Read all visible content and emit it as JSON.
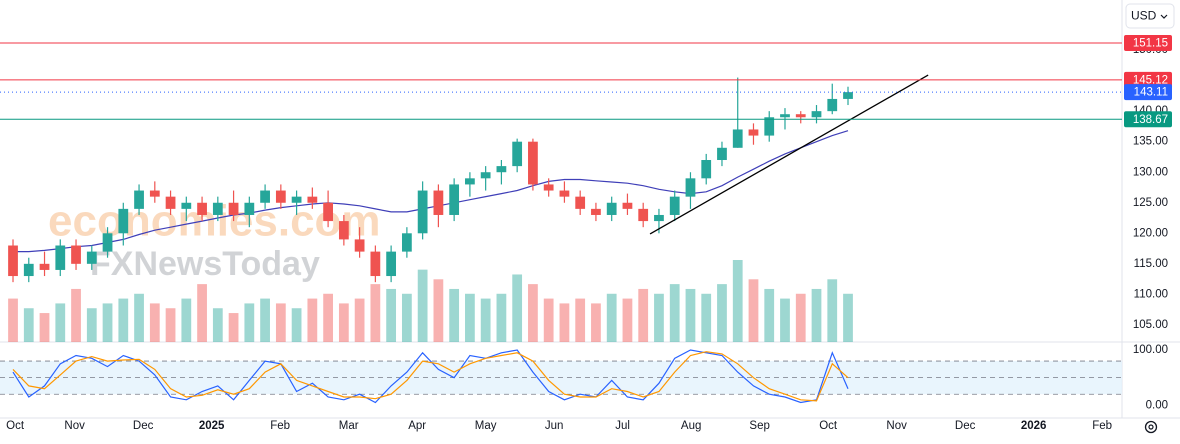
{
  "currency": "USD",
  "watermark": [
    "economies.com",
    "FXNewsToday"
  ],
  "chart_data": {
    "type": "candlestick",
    "xlim": [
      -0.09,
      16.29
    ],
    "xticks": [
      {
        "value": 0,
        "label": "Oct"
      },
      {
        "value": 1,
        "label": "Nov"
      },
      {
        "value": 2,
        "label": "Dec"
      },
      {
        "value": 3,
        "label": "2025"
      },
      {
        "value": 4,
        "label": "Feb"
      },
      {
        "value": 5,
        "label": "Mar"
      },
      {
        "value": 6,
        "label": "Apr"
      },
      {
        "value": 7,
        "label": "May"
      },
      {
        "value": 8,
        "label": "Jun"
      },
      {
        "value": 9,
        "label": "Jul"
      },
      {
        "value": 10,
        "label": "Aug"
      },
      {
        "value": 11,
        "label": "Sep"
      },
      {
        "value": 12,
        "label": "Oct"
      },
      {
        "value": 13,
        "label": "Nov"
      },
      {
        "value": 14,
        "label": "Dec"
      },
      {
        "value": 15,
        "label": "2026"
      },
      {
        "value": 16,
        "label": "Feb"
      }
    ],
    "ylim": [
      102.2,
      158.2
    ],
    "yticks": [
      {
        "value": 105,
        "label": "105.00"
      },
      {
        "value": 110,
        "label": "110.00"
      },
      {
        "value": 115,
        "label": "115.00"
      },
      {
        "value": 120,
        "label": "120.00"
      },
      {
        "value": 125,
        "label": "125.00"
      },
      {
        "value": 130,
        "label": "130.00"
      },
      {
        "value": 135,
        "label": "135.00"
      },
      {
        "value": 140,
        "label": "140.00"
      },
      {
        "value": 145,
        "label": "145.00"
      },
      {
        "value": 150,
        "label": "150.00"
      }
    ],
    "grid": false,
    "up_color": "#26a69a",
    "down_color": "#ef5350",
    "x": [
      0.1,
      0.33,
      0.56,
      0.79,
      1.02,
      1.25,
      1.48,
      1.71,
      1.94,
      2.17,
      2.4,
      2.63,
      2.86,
      3.09,
      3.32,
      3.55,
      3.78,
      4.01,
      4.24,
      4.47,
      4.7,
      4.93,
      5.16,
      5.39,
      5.62,
      5.85,
      6.08,
      6.31,
      6.54,
      6.77,
      7.0,
      7.23,
      7.46,
      7.69,
      7.92,
      8.15,
      8.38,
      8.61,
      8.84,
      9.07,
      9.3,
      9.53,
      9.76,
      9.99,
      10.22,
      10.45,
      10.68,
      10.91,
      11.14,
      11.37,
      11.6,
      11.83,
      12.06,
      12.29
    ],
    "open": [
      118,
      113,
      115,
      114,
      118,
      115,
      117,
      120,
      124,
      127,
      126,
      124,
      125,
      123,
      125,
      123,
      125,
      127,
      125,
      126,
      125,
      122,
      119,
      117,
      113,
      117,
      120,
      127,
      123,
      128,
      129,
      130,
      131,
      135,
      128,
      127,
      126,
      124,
      123,
      125,
      124,
      122,
      123,
      126,
      129,
      132,
      134,
      137,
      136,
      139,
      139.5,
      139,
      140,
      142
    ],
    "high": [
      119,
      116,
      117,
      119,
      119,
      118,
      121,
      125,
      128,
      128.5,
      127,
      126,
      126,
      126,
      127,
      126,
      128,
      128,
      127,
      127.5,
      127,
      123,
      121,
      118,
      118,
      121,
      128.5,
      128,
      129,
      130,
      131,
      132,
      135.5,
      135.5,
      129,
      128.5,
      127,
      125,
      126,
      126.5,
      125,
      124,
      127,
      130,
      133,
      135,
      145.5,
      138,
      140,
      140.5,
      140,
      141,
      144.5,
      144
    ],
    "low": [
      112,
      112,
      113,
      113,
      114,
      114,
      116,
      118,
      123,
      125,
      123,
      122,
      122,
      122,
      122,
      121,
      124,
      124,
      123,
      124,
      121,
      118,
      116,
      112,
      112,
      116,
      119,
      121,
      122,
      126,
      127,
      128,
      130,
      127,
      126,
      125,
      123,
      122,
      122,
      123,
      121,
      120,
      122,
      124,
      128,
      131,
      134,
      134.5,
      135,
      137,
      138,
      138,
      139.5,
      141
    ],
    "close": [
      113,
      115,
      114,
      118,
      115,
      117,
      120,
      124,
      127,
      126,
      124,
      125,
      123,
      125,
      123,
      125,
      127,
      125,
      126,
      125,
      122,
      119,
      117,
      113,
      117,
      120,
      127,
      123,
      128,
      129,
      130,
      131,
      135,
      128,
      127,
      126,
      124,
      123,
      125,
      124,
      122,
      123,
      126,
      129,
      132,
      134,
      137,
      136,
      139,
      139.5,
      139,
      140,
      142,
      143.11
    ],
    "volume": [
      45,
      35,
      30,
      40,
      55,
      35,
      40,
      45,
      50,
      40,
      35,
      45,
      60,
      35,
      30,
      40,
      45,
      40,
      35,
      45,
      50,
      40,
      45,
      60,
      55,
      50,
      75,
      65,
      55,
      50,
      45,
      50,
      70,
      60,
      45,
      40,
      45,
      40,
      50,
      45,
      55,
      50,
      60,
      55,
      50,
      60,
      85,
      65,
      55,
      45,
      50,
      55,
      65,
      50
    ],
    "ma": {
      "color": "#3f3fb8",
      "values": [
        117,
        117,
        117.2,
        117.5,
        117.8,
        118,
        118.5,
        119,
        119.8,
        120.5,
        121,
        121.5,
        122,
        122.5,
        123,
        123.3,
        123.8,
        124.2,
        124.5,
        124.8,
        125,
        124.8,
        124.5,
        124,
        123.5,
        123.5,
        124,
        124.5,
        125,
        125.5,
        126,
        126.5,
        127,
        127.8,
        128.5,
        128.8,
        128.8,
        128.6,
        128.4,
        128.2,
        127.8,
        127.2,
        126.8,
        126.5,
        126.8,
        127.8,
        129.2,
        130.5,
        131.8,
        133,
        134,
        135,
        136,
        136.8
      ]
    },
    "levels": [
      {
        "value": 151.15,
        "color": "#f23645",
        "style": "solid"
      },
      {
        "value": 145.12,
        "color": "#f23645",
        "style": "solid"
      },
      {
        "value": 143.11,
        "color": "#2962ff",
        "style": "dotted"
      },
      {
        "value": 138.67,
        "color": "#089981",
        "style": "solid"
      }
    ],
    "trendline": {
      "x": [
        9.4,
        13.46
      ],
      "y": [
        119.9,
        145.9
      ],
      "color": "#000000"
    },
    "oscillator": {
      "type": "line",
      "ylim": [
        -23,
        114.5
      ],
      "yticks": [
        {
          "value": 100,
          "label": "100.00"
        },
        {
          "value": 0,
          "label": "0.00"
        }
      ],
      "guides": [
        20,
        50,
        80
      ],
      "band_color": "#e3f2fd",
      "series": [
        {
          "color": "#2962ff",
          "values": [
            60,
            15,
            35,
            75,
            90,
            85,
            70,
            90,
            80,
            55,
            15,
            10,
            25,
            35,
            10,
            45,
            80,
            75,
            25,
            40,
            15,
            10,
            20,
            5,
            35,
            60,
            95,
            65,
            50,
            90,
            85,
            95,
            100,
            60,
            25,
            10,
            20,
            15,
            45,
            15,
            10,
            40,
            85,
            100,
            95,
            90,
            60,
            35,
            20,
            15,
            5,
            10,
            95,
            30
          ]
        },
        {
          "color": "#ff9800",
          "values": [
            65,
            35,
            30,
            55,
            80,
            88,
            80,
            82,
            83,
            65,
            30,
            15,
            18,
            28,
            20,
            30,
            60,
            75,
            45,
            35,
            25,
            15,
            15,
            12,
            20,
            45,
            80,
            75,
            60,
            75,
            85,
            90,
            95,
            80,
            45,
            20,
            15,
            15,
            30,
            25,
            15,
            25,
            60,
            90,
            97,
            93,
            75,
            50,
            30,
            20,
            10,
            8,
            75,
            50
          ]
        }
      ]
    }
  }
}
